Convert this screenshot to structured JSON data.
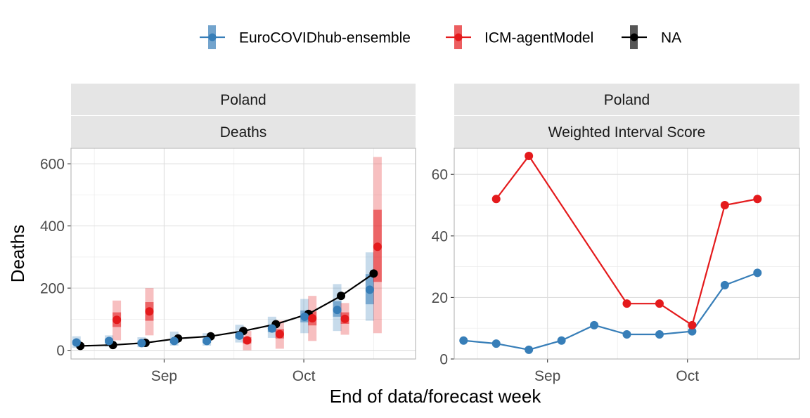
{
  "legend": {
    "items": [
      {
        "label": "EuroCOVIDhub-ensemble",
        "color": "#377EB8"
      },
      {
        "label": "ICM-agentModel",
        "color": "#E41A1C"
      },
      {
        "label": "NA",
        "color": "#000000"
      }
    ]
  },
  "xlabel": "End of data/forecast week",
  "panels": [
    {
      "strip_top": "Poland",
      "strip_bottom": "Deaths",
      "ylabel": "Deaths"
    },
    {
      "strip_top": "Poland",
      "strip_bottom": "Weighted Interval Score",
      "ylabel": ""
    }
  ],
  "chart_data": [
    {
      "type": "line",
      "title": "Poland — Deaths",
      "xlabel": "End of data/forecast week",
      "ylabel": "Deaths",
      "x_tick_labels": [
        "Sep",
        "Oct"
      ],
      "x_ticks": [
        "2021-09-01",
        "2021-10-01"
      ],
      "xlim": [
        "2021-08-12",
        "2021-10-25"
      ],
      "y_ticks": [
        0,
        200,
        400,
        600
      ],
      "ylim": [
        -28,
        650
      ],
      "grid": true,
      "legend_position": "top",
      "observed": {
        "name": "NA",
        "color": "#000000",
        "x": [
          "2021-08-14",
          "2021-08-21",
          "2021-08-28",
          "2021-09-04",
          "2021-09-11",
          "2021-09-18",
          "2021-09-25",
          "2021-10-02",
          "2021-10-09",
          "2021-10-16"
        ],
        "y": [
          14,
          17,
          24,
          38,
          45,
          62,
          84,
          117,
          175,
          247
        ]
      },
      "series": [
        {
          "name": "EuroCOVIDhub-ensemble",
          "color": "#377EB8",
          "x": [
            "2021-08-14",
            "2021-08-21",
            "2021-08-28",
            "2021-09-04",
            "2021-09-11",
            "2021-09-18",
            "2021-09-25",
            "2021-10-02",
            "2021-10-09",
            "2021-10-16"
          ],
          "median": [
            25,
            30,
            23,
            30,
            30,
            47,
            70,
            108,
            130,
            195
          ],
          "q25": [
            18,
            22,
            18,
            24,
            24,
            38,
            58,
            90,
            108,
            148
          ],
          "q75": [
            32,
            37,
            30,
            37,
            37,
            58,
            82,
            128,
            158,
            245
          ],
          "q05": [
            8,
            12,
            10,
            15,
            15,
            25,
            40,
            55,
            62,
            95
          ],
          "q95": [
            45,
            48,
            42,
            60,
            55,
            82,
            108,
            165,
            213,
            315
          ]
        },
        {
          "name": "ICM-agentModel",
          "color": "#E41A1C",
          "x": [
            "2021-08-21",
            "2021-08-28",
            "2021-09-18",
            "2021-09-25",
            "2021-10-02",
            "2021-10-09",
            "2021-10-16"
          ],
          "median": [
            98,
            125,
            32,
            52,
            103,
            101,
            333
          ],
          "q25": [
            75,
            95,
            22,
            38,
            80,
            85,
            220
          ],
          "q75": [
            122,
            155,
            42,
            68,
            125,
            122,
            452
          ],
          "q05": [
            32,
            48,
            0,
            5,
            30,
            50,
            55
          ],
          "q95": [
            160,
            200,
            62,
            95,
            175,
            152,
            622
          ]
        }
      ]
    },
    {
      "type": "line",
      "title": "Poland — Weighted Interval Score",
      "xlabel": "End of data/forecast week",
      "ylabel": "",
      "x_tick_labels": [
        "Sep",
        "Oct"
      ],
      "x_ticks": [
        "2021-09-01",
        "2021-10-01"
      ],
      "xlim": [
        "2021-08-12",
        "2021-10-25"
      ],
      "y_ticks": [
        0,
        20,
        40,
        60
      ],
      "ylim": [
        0,
        68.5
      ],
      "grid": true,
      "series": [
        {
          "name": "EuroCOVIDhub-ensemble",
          "color": "#377EB8",
          "x": [
            "2021-08-14",
            "2021-08-21",
            "2021-08-28",
            "2021-09-04",
            "2021-09-11",
            "2021-09-18",
            "2021-09-25",
            "2021-10-02",
            "2021-10-09",
            "2021-10-16"
          ],
          "y": [
            6,
            5,
            3,
            6,
            11,
            8,
            8,
            9,
            24,
            28
          ]
        },
        {
          "name": "ICM-agentModel",
          "color": "#E41A1C",
          "x": [
            "2021-08-21",
            "2021-08-28",
            "2021-09-18",
            "2021-09-25",
            "2021-10-02",
            "2021-10-09",
            "2021-10-16"
          ],
          "y": [
            52,
            66,
            18,
            18,
            11,
            50,
            52
          ]
        }
      ]
    }
  ]
}
